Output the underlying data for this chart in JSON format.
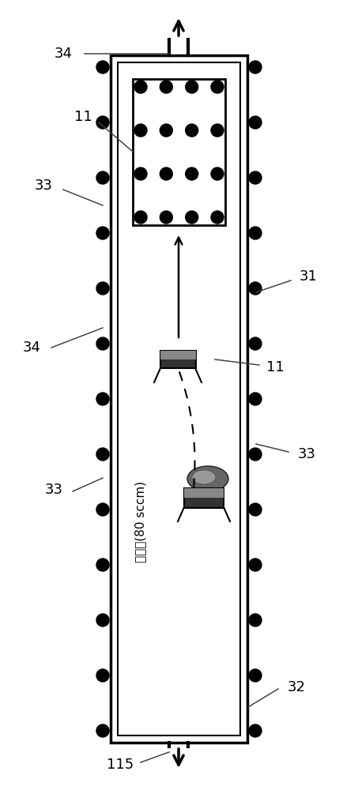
{
  "fig_width": 4.53,
  "fig_height": 10.0,
  "bg_color": "#ffffff",
  "label_fontsize": 13,
  "line_color": "#444444",
  "chinese_text": "氯气流(80 sccm)"
}
